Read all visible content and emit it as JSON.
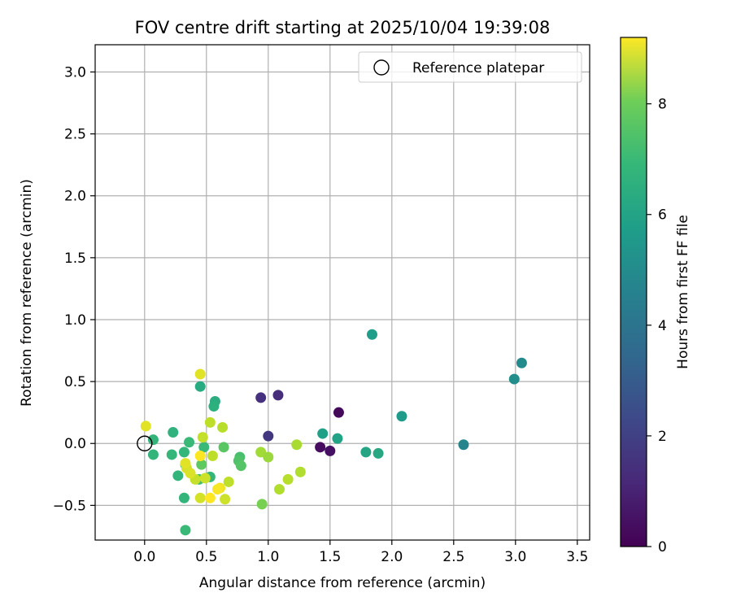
{
  "chart_data": {
    "type": "scatter",
    "title": "FOV centre drift starting at 2025/10/04 19:39:08",
    "xlabel": "Angular distance from reference (arcmin)",
    "ylabel": "Rotation from reference (arcmin)",
    "xlim": [
      -0.4,
      3.6
    ],
    "ylim": [
      -0.78,
      3.22
    ],
    "x_ticks": [
      "0.0",
      "0.5",
      "1.0",
      "1.5",
      "2.0",
      "2.5",
      "3.0",
      "3.5"
    ],
    "y_ticks": [
      "−0.5",
      "0.0",
      "0.5",
      "1.0",
      "1.5",
      "2.0",
      "2.5",
      "3.0"
    ],
    "grid": true,
    "legend": {
      "position": "top-right",
      "entries": [
        "Reference platepar"
      ]
    },
    "reference_point": {
      "x": 0.0,
      "y": 0.0
    },
    "colorbar": {
      "label": "Hours from first FF file",
      "min": 0,
      "max": 9.2,
      "ticks": [
        "0",
        "2",
        "4",
        "6",
        "8"
      ]
    },
    "points": [
      {
        "x": 1.57,
        "y": 0.25,
        "h": 0.2
      },
      {
        "x": 1.42,
        "y": -0.03,
        "h": 0.3
      },
      {
        "x": 1.5,
        "y": -0.06,
        "h": 0.4
      },
      {
        "x": 0.94,
        "y": 0.37,
        "h": 1.3
      },
      {
        "x": 1.08,
        "y": 0.39,
        "h": 1.2
      },
      {
        "x": 1.0,
        "y": 0.06,
        "h": 1.5
      },
      {
        "x": 2.58,
        "y": -0.01,
        "h": 4.2
      },
      {
        "x": 3.05,
        "y": 0.65,
        "h": 4.4
      },
      {
        "x": 2.99,
        "y": 0.52,
        "h": 4.5
      },
      {
        "x": 2.08,
        "y": 0.22,
        "h": 5.0
      },
      {
        "x": 1.84,
        "y": 0.88,
        "h": 5.1
      },
      {
        "x": 1.44,
        "y": 0.08,
        "h": 5.2
      },
      {
        "x": 1.56,
        "y": 0.04,
        "h": 5.3
      },
      {
        "x": 1.79,
        "y": -0.07,
        "h": 5.4
      },
      {
        "x": 1.89,
        "y": -0.08,
        "h": 5.5
      },
      {
        "x": 0.45,
        "y": 0.46,
        "h": 5.6
      },
      {
        "x": 0.57,
        "y": 0.34,
        "h": 5.7
      },
      {
        "x": 0.56,
        "y": 0.3,
        "h": 5.8
      },
      {
        "x": 0.23,
        "y": 0.09,
        "h": 5.9
      },
      {
        "x": 0.07,
        "y": 0.03,
        "h": 6.0
      },
      {
        "x": 0.07,
        "y": -0.09,
        "h": 6.0
      },
      {
        "x": 0.22,
        "y": -0.09,
        "h": 6.1
      },
      {
        "x": 0.32,
        "y": -0.07,
        "h": 6.1
      },
      {
        "x": 0.36,
        "y": 0.01,
        "h": 6.2
      },
      {
        "x": 0.48,
        "y": -0.03,
        "h": 6.2
      },
      {
        "x": 0.27,
        "y": -0.26,
        "h": 6.0
      },
      {
        "x": 0.33,
        "y": -0.17,
        "h": 6.2
      },
      {
        "x": 0.53,
        "y": -0.27,
        "h": 6.1
      },
      {
        "x": 0.44,
        "y": -0.29,
        "h": 6.3
      },
      {
        "x": 0.32,
        "y": -0.44,
        "h": 6.0
      },
      {
        "x": 0.33,
        "y": -0.7,
        "h": 6.2
      },
      {
        "x": 0.77,
        "y": -0.11,
        "h": 6.5
      },
      {
        "x": 0.76,
        "y": -0.14,
        "h": 6.6
      },
      {
        "x": 0.78,
        "y": -0.18,
        "h": 6.7
      },
      {
        "x": 0.64,
        "y": -0.03,
        "h": 6.8
      },
      {
        "x": 0.46,
        "y": -0.17,
        "h": 6.9
      },
      {
        "x": 0.95,
        "y": -0.49,
        "h": 7.3
      },
      {
        "x": 0.94,
        "y": -0.07,
        "h": 7.9
      },
      {
        "x": 1.0,
        "y": -0.11,
        "h": 7.8
      },
      {
        "x": 1.23,
        "y": -0.01,
        "h": 8.0
      },
      {
        "x": 1.26,
        "y": -0.23,
        "h": 8.1
      },
      {
        "x": 1.16,
        "y": -0.29,
        "h": 8.2
      },
      {
        "x": 1.09,
        "y": -0.37,
        "h": 8.1
      },
      {
        "x": 0.53,
        "y": 0.17,
        "h": 8.3
      },
      {
        "x": 0.63,
        "y": 0.13,
        "h": 8.2
      },
      {
        "x": 0.47,
        "y": 0.05,
        "h": 8.4
      },
      {
        "x": 0.55,
        "y": -0.1,
        "h": 8.3
      },
      {
        "x": 0.41,
        "y": -0.29,
        "h": 8.4
      },
      {
        "x": 0.49,
        "y": -0.28,
        "h": 8.5
      },
      {
        "x": 0.68,
        "y": -0.31,
        "h": 8.3
      },
      {
        "x": 0.65,
        "y": -0.45,
        "h": 8.5
      },
      {
        "x": 0.45,
        "y": -0.44,
        "h": 8.6
      },
      {
        "x": 0.34,
        "y": -0.2,
        "h": 8.6
      },
      {
        "x": 0.37,
        "y": -0.24,
        "h": 8.7
      },
      {
        "x": 0.45,
        "y": 0.56,
        "h": 8.8
      },
      {
        "x": 0.01,
        "y": 0.14,
        "h": 8.8
      },
      {
        "x": 0.33,
        "y": -0.16,
        "h": 8.8
      },
      {
        "x": 0.61,
        "y": -0.36,
        "h": 9.0
      },
      {
        "x": 0.59,
        "y": -0.37,
        "h": 9.1
      },
      {
        "x": 0.53,
        "y": -0.44,
        "h": 9.2
      },
      {
        "x": 0.45,
        "y": -0.1,
        "h": 9.2
      }
    ]
  }
}
